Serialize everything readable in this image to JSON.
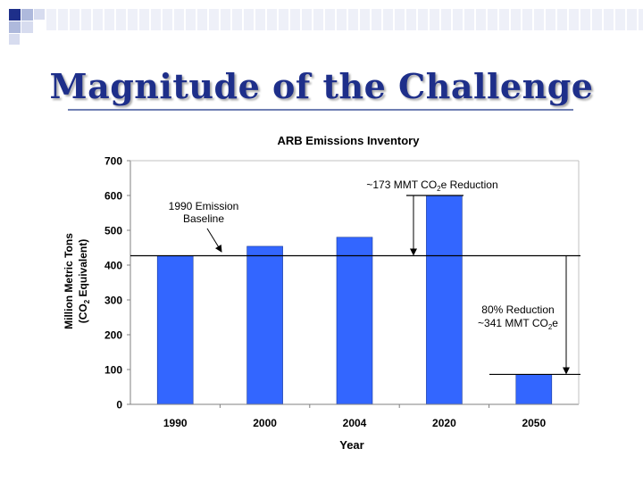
{
  "slide": {
    "title": "Magnitude of the Challenge"
  },
  "chart_data": {
    "type": "bar",
    "title": "ARB Emissions Inventory",
    "xlabel": "Year",
    "ylabel_line1": "Million Metric Tons",
    "ylabel_line2_pre": "(CO",
    "ylabel_line2_sub": "2",
    "ylabel_line2_post": " Equivalent)",
    "categories": [
      "1990",
      "2000",
      "2004",
      "2020",
      "2050"
    ],
    "values": [
      427,
      454,
      480,
      600,
      86
    ],
    "ylim": [
      0,
      700
    ],
    "yticks": [
      "0",
      "100",
      "200",
      "300",
      "400",
      "500",
      "600",
      "700"
    ],
    "baseline_value": 427,
    "grid": false,
    "bar_color": "#3366ff",
    "annotations": {
      "baseline_line1": "1990 Emission",
      "baseline_line2": "Baseline",
      "reduction2020_pre": "~173 MMT CO",
      "reduction2020_sub": "2",
      "reduction2020_post": "e Reduction",
      "reduction2050_line1": "80% Reduction",
      "reduction2050_pre": "~341 MMT CO",
      "reduction2050_sub": "2",
      "reduction2050_post": "e"
    }
  }
}
